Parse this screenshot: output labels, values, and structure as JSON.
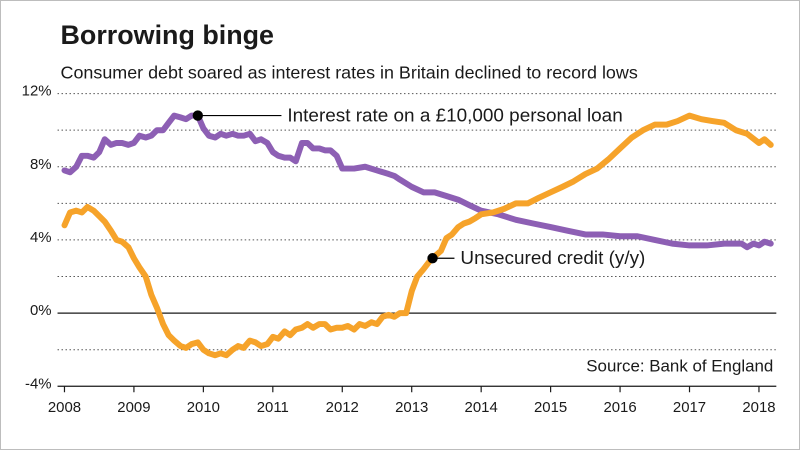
{
  "chart_data": {
    "type": "line",
    "title": "Borrowing binge",
    "subtitle": "Consumer debt soared as interest rates in Britain declined to record lows",
    "source": "Source: Bank of England",
    "xlabel": "",
    "ylabel": "",
    "xlim": [
      2007.9,
      2018.25
    ],
    "ylim": [
      -4,
      12
    ],
    "x_ticks": [
      2008,
      2009,
      2010,
      2011,
      2012,
      2013,
      2014,
      2015,
      2016,
      2017,
      2018
    ],
    "x_tick_labels": [
      "2008",
      "2009",
      "2010",
      "2011",
      "2012",
      "2013",
      "2014",
      "2015",
      "2016",
      "2017",
      "2018"
    ],
    "y_ticks": [
      -4,
      0,
      4,
      8,
      12
    ],
    "y_tick_labels": [
      "-4%",
      "0%",
      "4%",
      "8%",
      "12%"
    ],
    "grid": "horizontal dotted",
    "zero_line": true,
    "series": [
      {
        "name": "Interest rate on a £10,000 personal loan",
        "color": "#8d5fb4",
        "x": [
          2008.0,
          2008.08,
          2008.17,
          2008.25,
          2008.33,
          2008.42,
          2008.5,
          2008.58,
          2008.67,
          2008.75,
          2008.83,
          2008.92,
          2009.0,
          2009.08,
          2009.17,
          2009.25,
          2009.33,
          2009.42,
          2009.5,
          2009.58,
          2009.67,
          2009.75,
          2009.83,
          2009.92,
          2010.0,
          2010.08,
          2010.17,
          2010.25,
          2010.33,
          2010.42,
          2010.5,
          2010.58,
          2010.67,
          2010.75,
          2010.83,
          2010.92,
          2011.0,
          2011.08,
          2011.17,
          2011.25,
          2011.33,
          2011.42,
          2011.5,
          2011.58,
          2011.67,
          2011.75,
          2011.83,
          2011.92,
          2012.0,
          2012.08,
          2012.17,
          2012.33,
          2012.5,
          2012.67,
          2012.75,
          2012.83,
          2013.0,
          2013.17,
          2013.33,
          2013.5,
          2013.67,
          2013.83,
          2014.0,
          2014.25,
          2014.5,
          2014.75,
          2015.0,
          2015.25,
          2015.5,
          2015.75,
          2016.0,
          2016.25,
          2016.5,
          2016.75,
          2017.0,
          2017.25,
          2017.5,
          2017.75,
          2017.83,
          2017.92,
          2018.0,
          2018.08,
          2018.17
        ],
        "y": [
          7.8,
          7.7,
          8.0,
          8.6,
          8.6,
          8.5,
          8.8,
          9.5,
          9.2,
          9.3,
          9.3,
          9.2,
          9.3,
          9.7,
          9.6,
          9.7,
          10.0,
          10.0,
          10.4,
          10.8,
          10.7,
          10.6,
          10.8,
          10.8,
          10.1,
          9.7,
          9.6,
          9.8,
          9.7,
          9.8,
          9.7,
          9.7,
          9.8,
          9.4,
          9.5,
          9.3,
          8.8,
          8.6,
          8.5,
          8.5,
          8.3,
          9.3,
          9.3,
          9.0,
          9.0,
          8.9,
          8.9,
          8.6,
          7.9,
          7.9,
          7.9,
          8.0,
          7.8,
          7.6,
          7.5,
          7.3,
          6.9,
          6.6,
          6.6,
          6.4,
          6.2,
          5.9,
          5.6,
          5.4,
          5.1,
          4.9,
          4.7,
          4.5,
          4.3,
          4.3,
          4.2,
          4.2,
          4.0,
          3.8,
          3.7,
          3.7,
          3.8,
          3.8,
          3.6,
          3.8,
          3.7,
          3.9,
          3.8
        ]
      },
      {
        "name": "Unsecured credit (y/y)",
        "color": "#f6a32a",
        "x": [
          2008.0,
          2008.08,
          2008.17,
          2008.25,
          2008.33,
          2008.42,
          2008.5,
          2008.58,
          2008.67,
          2008.75,
          2008.83,
          2008.92,
          2009.0,
          2009.08,
          2009.17,
          2009.25,
          2009.33,
          2009.42,
          2009.5,
          2009.58,
          2009.67,
          2009.75,
          2009.83,
          2009.92,
          2010.0,
          2010.08,
          2010.17,
          2010.25,
          2010.33,
          2010.42,
          2010.5,
          2010.58,
          2010.67,
          2010.75,
          2010.83,
          2010.92,
          2011.0,
          2011.08,
          2011.17,
          2011.25,
          2011.33,
          2011.42,
          2011.5,
          2011.58,
          2011.67,
          2011.75,
          2011.83,
          2011.92,
          2012.0,
          2012.08,
          2012.17,
          2012.25,
          2012.33,
          2012.42,
          2012.5,
          2012.58,
          2012.67,
          2012.75,
          2012.83,
          2012.92,
          2013.0,
          2013.08,
          2013.17,
          2013.25,
          2013.33,
          2013.42,
          2013.5,
          2013.58,
          2013.67,
          2013.75,
          2013.83,
          2013.92,
          2014.0,
          2014.17,
          2014.33,
          2014.5,
          2014.67,
          2014.83,
          2015.0,
          2015.17,
          2015.33,
          2015.5,
          2015.67,
          2015.83,
          2016.0,
          2016.17,
          2016.33,
          2016.5,
          2016.67,
          2016.83,
          2017.0,
          2017.17,
          2017.33,
          2017.5,
          2017.67,
          2017.83,
          2018.0,
          2018.08,
          2018.17
        ],
        "y": [
          4.8,
          5.5,
          5.6,
          5.5,
          5.8,
          5.6,
          5.3,
          5.0,
          4.5,
          4.0,
          3.9,
          3.6,
          3.0,
          2.5,
          2.0,
          1.0,
          0.3,
          -0.6,
          -1.2,
          -1.5,
          -1.8,
          -1.9,
          -1.7,
          -1.6,
          -2.0,
          -2.2,
          -2.3,
          -2.2,
          -2.3,
          -2.0,
          -1.8,
          -1.9,
          -1.5,
          -1.6,
          -1.8,
          -1.7,
          -1.3,
          -1.4,
          -1.0,
          -1.2,
          -0.9,
          -0.8,
          -0.6,
          -0.8,
          -0.6,
          -0.6,
          -0.9,
          -0.8,
          -0.8,
          -0.7,
          -0.9,
          -0.6,
          -0.7,
          -0.5,
          -0.6,
          -0.2,
          -0.1,
          -0.2,
          0.0,
          0.0,
          1.2,
          2.0,
          2.4,
          2.8,
          3.1,
          3.4,
          4.1,
          4.3,
          4.7,
          4.9,
          5.0,
          5.2,
          5.4,
          5.5,
          5.7,
          6.0,
          6.0,
          6.3,
          6.6,
          6.9,
          7.2,
          7.6,
          7.9,
          8.4,
          9.0,
          9.6,
          10.0,
          10.3,
          10.3,
          10.5,
          10.8,
          10.6,
          10.5,
          10.4,
          10.0,
          9.8,
          9.3,
          9.5,
          9.2
        ]
      }
    ],
    "annotations": [
      {
        "text": "Interest rate on a £10,000 personal loan",
        "series": 0,
        "x": 2009.92,
        "y": 10.8
      },
      {
        "text": "Unsecured credit (y/y)",
        "series": 1,
        "x": 2013.3,
        "y": 3.0
      }
    ]
  }
}
